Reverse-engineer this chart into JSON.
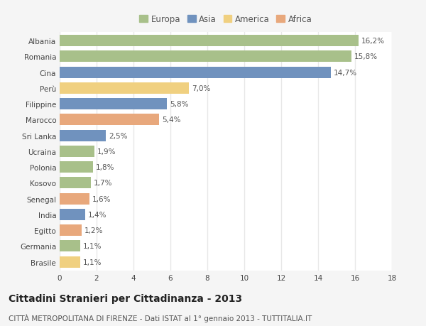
{
  "categories": [
    "Albania",
    "Romania",
    "Cina",
    "Perù",
    "Filippine",
    "Marocco",
    "Sri Lanka",
    "Ucraina",
    "Polonia",
    "Kosovo",
    "Senegal",
    "India",
    "Egitto",
    "Germania",
    "Brasile"
  ],
  "values": [
    16.2,
    15.8,
    14.7,
    7.0,
    5.8,
    5.4,
    2.5,
    1.9,
    1.8,
    1.7,
    1.6,
    1.4,
    1.2,
    1.1,
    1.1
  ],
  "labels": [
    "16,2%",
    "15,8%",
    "14,7%",
    "7,0%",
    "5,8%",
    "5,4%",
    "2,5%",
    "1,9%",
    "1,8%",
    "1,7%",
    "1,6%",
    "1,4%",
    "1,2%",
    "1,1%",
    "1,1%"
  ],
  "colors": [
    "#a8c08a",
    "#a8c08a",
    "#7092be",
    "#f0d080",
    "#7092be",
    "#e8a87c",
    "#7092be",
    "#a8c08a",
    "#a8c08a",
    "#a8c08a",
    "#e8a87c",
    "#7092be",
    "#e8a87c",
    "#a8c08a",
    "#f0d080"
  ],
  "legend_labels": [
    "Europa",
    "Asia",
    "America",
    "Africa"
  ],
  "legend_colors": [
    "#a8c08a",
    "#7092be",
    "#f0d080",
    "#e8a87c"
  ],
  "xlim": [
    0,
    18
  ],
  "xticks": [
    0,
    2,
    4,
    6,
    8,
    10,
    12,
    14,
    16,
    18
  ],
  "title": "Cittadini Stranieri per Cittadinanza - 2013",
  "subtitle": "CITTÀ METROPOLITANA DI FIRENZE - Dati ISTAT al 1° gennaio 2013 - TUTTITALIA.IT",
  "fig_background": "#f5f5f5",
  "ax_background": "#ffffff",
  "grid_color": "#e8e8e8",
  "bar_height": 0.72,
  "title_fontsize": 10,
  "subtitle_fontsize": 7.5,
  "label_fontsize": 7.5,
  "tick_fontsize": 7.5,
  "legend_fontsize": 8.5
}
